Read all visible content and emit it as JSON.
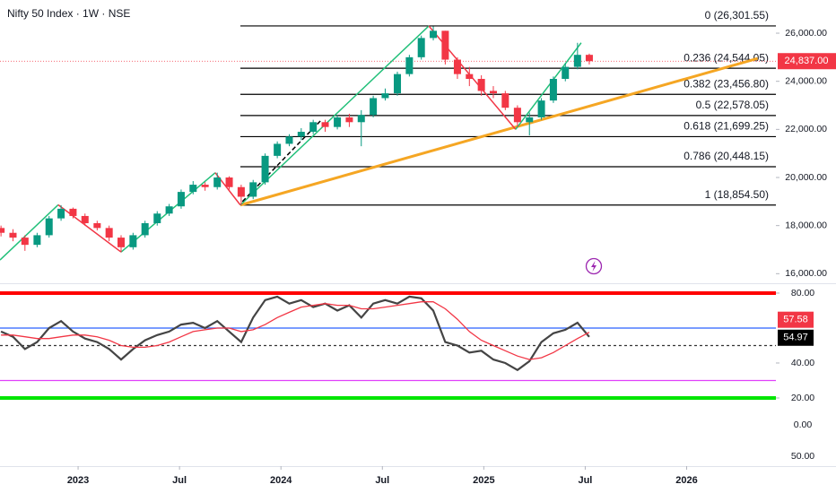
{
  "chart_data": [
    {
      "type": "candlestick",
      "title": "Nifty 50 Index · 1W · NSE",
      "x": [
        2022.62,
        2022.679,
        2022.738,
        2022.798,
        2022.857,
        2022.916,
        2022.975,
        2023.034,
        2023.094,
        2023.153,
        2023.212,
        2023.271,
        2023.33,
        2023.39,
        2023.449,
        2023.508,
        2023.567,
        2023.626,
        2023.686,
        2023.745,
        2023.804,
        2023.863,
        2023.922,
        2023.982,
        2024.041,
        2024.1,
        2024.159,
        2024.218,
        2024.278,
        2024.337,
        2024.396,
        2024.455,
        2024.514,
        2024.574,
        2024.633,
        2024.692,
        2024.751,
        2024.81,
        2024.87,
        2024.929,
        2024.988,
        2025.047,
        2025.106,
        2025.166,
        2025.225,
        2025.284,
        2025.343,
        2025.402,
        2025.462,
        2025.52
      ],
      "open": [
        17900,
        17700,
        17500,
        17200,
        17600,
        18300,
        18700,
        18400,
        18100,
        17900,
        17500,
        17100,
        17600,
        18100,
        18500,
        18800,
        19400,
        19700,
        19600,
        20000,
        19600,
        19200,
        19800,
        20900,
        21400,
        21700,
        21900,
        22300,
        22100,
        22500,
        22300,
        22600,
        23300,
        23500,
        24300,
        25000,
        25800,
        26100,
        24900,
        24300,
        24100,
        23600,
        23500,
        22900,
        22300,
        22500,
        23200,
        24100,
        24600,
        25100
      ],
      "high": [
        18000,
        17850,
        17600,
        17700,
        18400,
        18850,
        18750,
        18500,
        18200,
        18000,
        17600,
        17700,
        18200,
        18600,
        18900,
        19500,
        19850,
        19800,
        20200,
        20050,
        19700,
        19900,
        21000,
        21500,
        21800,
        22050,
        22400,
        22400,
        22600,
        22650,
        22800,
        23400,
        23700,
        24400,
        25100,
        25900,
        26280,
        26100,
        25000,
        24600,
        24250,
        23800,
        23600,
        23000,
        22700,
        23300,
        24200,
        24750,
        25600,
        25150
      ],
      "low": [
        17550,
        17350,
        16950,
        17100,
        17500,
        18200,
        18300,
        18000,
        17800,
        17350,
        16900,
        17000,
        17500,
        18000,
        18400,
        18700,
        19300,
        19450,
        19500,
        19500,
        18850,
        19100,
        19700,
        20800,
        21300,
        21550,
        21800,
        21900,
        22000,
        22100,
        21300,
        22500,
        23200,
        23400,
        24200,
        24900,
        25700,
        24700,
        24100,
        23800,
        23400,
        23300,
        22800,
        22100,
        21750,
        22400,
        23100,
        24000,
        24500,
        24700
      ],
      "close": [
        17700,
        17500,
        17200,
        17600,
        18300,
        18700,
        18400,
        18100,
        17900,
        17500,
        17100,
        17600,
        18100,
        18500,
        18800,
        19400,
        19700,
        19600,
        20000,
        19600,
        19200,
        19800,
        20900,
        21400,
        21700,
        21900,
        22300,
        22100,
        22500,
        22300,
        22600,
        23300,
        23500,
        24300,
        25000,
        25800,
        26100,
        24900,
        24300,
        24100,
        23600,
        23500,
        22900,
        22300,
        22500,
        23200,
        24100,
        24600,
        25100,
        24837
      ],
      "up_color": "#089981",
      "down_color": "#f23645",
      "xlim": [
        2022.615,
        2026.44
      ],
      "ylim": [
        15640,
        27380
      ],
      "yticks": [
        {
          "value": 16000,
          "label": "16,000.00"
        },
        {
          "value": 18000,
          "label": "18,000.00"
        },
        {
          "value": 20000,
          "label": "20,000.00"
        },
        {
          "value": 22000,
          "label": "22,000.00"
        },
        {
          "value": 24000,
          "label": "24,000.00"
        },
        {
          "value": 26000,
          "label": "26,000.00"
        }
      ],
      "last_price": {
        "value": 24837,
        "label": "24,837.00",
        "color": "#f23645"
      },
      "fib_start_x": 2023.8,
      "fib_levels": [
        {
          "value": 26301.55,
          "label": "0 (26,301.55)"
        },
        {
          "value": 24544.05,
          "label": "0.236 (24,544.05)"
        },
        {
          "value": 23456.8,
          "label": "0.382 (23,456.80)"
        },
        {
          "value": 22578.05,
          "label": "0.5 (22,578.05)"
        },
        {
          "value": 21699.25,
          "label": "0.618 (21,699.25)"
        },
        {
          "value": 20448.15,
          "label": "0.786 (20,448.15)"
        },
        {
          "value": 18854.5,
          "label": "1 (18,854.50)"
        }
      ],
      "zigzag": {
        "x": [
          2022.615,
          2022.902,
          2023.212,
          2023.676,
          2023.8,
          2024.729,
          2025.157,
          2025.48
        ],
        "y": [
          16570,
          18865,
          16900,
          20200,
          18854.5,
          26301.55,
          22000,
          25600
        ],
        "up_color": "#22c07a",
        "down_color": "#f23645"
      },
      "dashed_line": {
        "x": [
          2023.81,
          2024.2
        ],
        "y": [
          19000,
          22400
        ]
      },
      "trendline": {
        "x": [
          2023.8,
          2026.35
        ],
        "y": [
          18854.5,
          24950
        ],
        "color": "#f5a623"
      }
    },
    {
      "type": "line",
      "x": [
        2022.62,
        2022.679,
        2022.738,
        2022.798,
        2022.857,
        2022.916,
        2022.975,
        2023.034,
        2023.094,
        2023.153,
        2023.212,
        2023.271,
        2023.33,
        2023.39,
        2023.449,
        2023.508,
        2023.567,
        2023.626,
        2023.686,
        2023.745,
        2023.804,
        2023.863,
        2023.922,
        2023.982,
        2024.041,
        2024.1,
        2024.159,
        2024.218,
        2024.278,
        2024.337,
        2024.396,
        2024.455,
        2024.514,
        2024.574,
        2024.633,
        2024.692,
        2024.751,
        2024.81,
        2024.87,
        2024.929,
        2024.988,
        2025.047,
        2025.106,
        2025.166,
        2025.225,
        2025.284,
        2025.343,
        2025.402,
        2025.462,
        2025.52
      ],
      "series": [
        {
          "color": "#444444",
          "values": [
            58,
            55,
            48,
            52,
            60,
            64,
            58,
            54,
            52,
            48,
            42,
            48,
            53,
            56,
            58,
            62,
            63,
            60,
            64,
            58,
            52,
            66,
            76,
            78,
            74,
            76,
            72,
            74,
            70,
            73,
            66,
            74,
            76,
            74,
            78,
            77,
            70,
            52,
            50,
            46,
            47,
            42,
            40,
            36,
            41,
            52,
            57,
            59,
            63,
            54.97
          ]
        },
        {
          "color": "#f23645",
          "values": [
            56,
            56,
            55,
            54,
            54,
            55,
            56,
            56,
            55,
            53,
            50,
            49,
            49,
            50,
            52,
            55,
            58,
            59,
            60,
            60,
            58,
            59,
            62,
            66,
            69,
            72,
            73,
            74,
            73,
            73,
            71,
            71,
            72,
            73,
            74,
            75,
            75,
            71,
            65,
            58,
            53,
            50,
            47,
            44,
            42,
            43,
            46,
            50,
            54,
            57.58
          ]
        }
      ],
      "levels": [
        {
          "value": 80,
          "color": "#ff0000"
        },
        {
          "value": 60,
          "color": "#2962ff"
        },
        {
          "value": 50,
          "color": "#333333"
        },
        {
          "value": 30,
          "color": "#e040fb"
        },
        {
          "value": 20,
          "color": "#00e600"
        }
      ],
      "xlim": [
        2022.615,
        2026.44
      ],
      "ylim": [
        -3.6,
        84.6
      ],
      "yticks": [
        {
          "value": 20,
          "label": "20.00"
        },
        {
          "value": 40,
          "label": "40.00"
        },
        {
          "value": 80,
          "label": "80.00"
        }
      ],
      "extra_axis_labels": [
        "0.00",
        "50.00"
      ],
      "xticks": [
        {
          "value": 2023,
          "label": "2023"
        },
        {
          "value": 2023.5,
          "label": "Jul"
        },
        {
          "value": 2024,
          "label": "2024"
        },
        {
          "value": 2024.5,
          "label": "Jul"
        },
        {
          "value": 2025,
          "label": "2025"
        },
        {
          "value": 2025.5,
          "label": "Jul"
        },
        {
          "value": 2026,
          "label": "2026"
        }
      ]
    }
  ]
}
